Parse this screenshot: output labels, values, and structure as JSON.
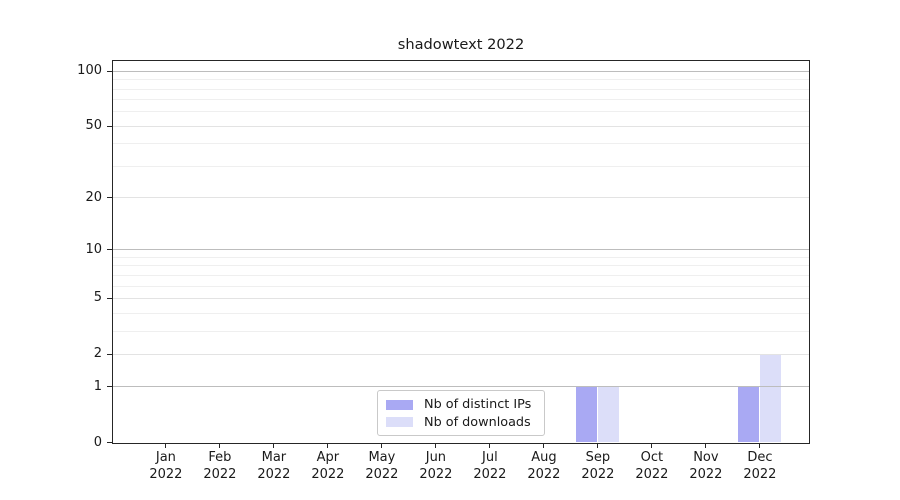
{
  "chart_data": {
    "type": "bar",
    "title": "shadowtext 2022",
    "categories": [
      "Jan",
      "Feb",
      "Mar",
      "Apr",
      "May",
      "Jun",
      "Jul",
      "Aug",
      "Sep",
      "Oct",
      "Nov",
      "Dec"
    ],
    "x_year_label": "2022",
    "series": [
      {
        "name": "Nb of distinct IPs",
        "color": "#a9a9f3",
        "values": [
          0,
          0,
          0,
          0,
          0,
          0,
          0,
          0,
          1,
          0,
          0,
          1
        ]
      },
      {
        "name": "Nb of downloads",
        "color": "#dcdef9",
        "values": [
          0,
          0,
          0,
          0,
          0,
          0,
          0,
          0,
          1,
          0,
          0,
          2
        ]
      }
    ],
    "y_axis": {
      "scale": "log1p",
      "ylim": [
        0,
        113
      ],
      "major_ticks": [
        0,
        1,
        2,
        5,
        10,
        20,
        50,
        100
      ],
      "decade_gridlines": [
        1,
        10,
        100
      ],
      "mid_gridlines": [
        2,
        5,
        20,
        50
      ],
      "minor_gridlines": [
        3,
        4,
        6,
        7,
        8,
        9,
        30,
        40,
        60,
        70,
        80,
        90
      ]
    },
    "legend": {
      "position": "lower center"
    },
    "grid": true
  },
  "colors": {
    "background": "#ffffff",
    "spine": "#262626",
    "text": "#1a1a1a",
    "grid_decade": "#bdbdbd",
    "grid_mid": "#e3e3e3",
    "grid_minor": "#efefef",
    "legend_border": "#c9c9c9"
  }
}
